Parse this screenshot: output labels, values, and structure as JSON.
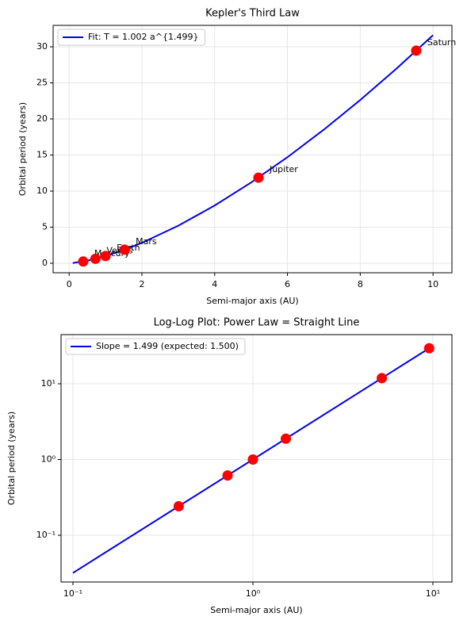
{
  "chart_data": [
    {
      "type": "scatter",
      "title": "Kepler's Third Law",
      "xlabel": "Semi-major axis (AU)",
      "ylabel": "Orbital period (years)",
      "xlim": [
        -0.44,
        10.52
      ],
      "ylim": [
        -1.32,
        32.97
      ],
      "xticks": [
        0,
        2,
        4,
        6,
        8,
        10
      ],
      "yticks": [
        0,
        5,
        10,
        15,
        20,
        25,
        30
      ],
      "grid": true,
      "legend": "upper left",
      "series": [
        {
          "type": "line",
          "name": "Fit: T = 1.002 a^{1.499}",
          "color": "#0000ee",
          "x": [
            0.1,
            0.5,
            1,
            1.5,
            2,
            3,
            4,
            5,
            6,
            7,
            8,
            9,
            10
          ],
          "values": [
            0.03176,
            0.3545,
            1.002,
            1.84,
            2.8321,
            5.2009,
            8.0049,
            11.1846,
            14.6999,
            18.5214,
            22.6256,
            26.9945,
            31.6132
          ]
        },
        {
          "type": "scatter",
          "color": "#ff0000",
          "x": [
            0.387,
            0.723,
            1.0,
            1.524,
            5.203,
            9.537
          ],
          "values": [
            0.241,
            0.615,
            1.0,
            1.881,
            11.86,
            29.46
          ],
          "point_labels": [
            "Mercury",
            "Venus",
            "Earth",
            "Mars",
            "Jupiter",
            "Saturn"
          ]
        }
      ]
    },
    {
      "type": "scatter",
      "title": "Log-Log Plot: Power Law = Straight Line",
      "xlabel": "Semi-major axis (AU)",
      "ylabel": "Orbital period (years)",
      "xscale": "log",
      "yscale": "log",
      "xlim": [
        0.0859,
        12.76
      ],
      "ylim": [
        0.0241,
        44.6
      ],
      "xticks": [
        {
          "value": 0.1,
          "label": "10⁻¹"
        },
        {
          "value": 1,
          "label": "10⁰"
        },
        {
          "value": 10,
          "label": "10¹"
        }
      ],
      "yticks": [
        {
          "value": 0.1,
          "label": "10⁻¹"
        },
        {
          "value": 1,
          "label": "10⁰"
        },
        {
          "value": 10,
          "label": "10¹"
        }
      ],
      "grid": true,
      "legend": "upper left",
      "series": [
        {
          "type": "line",
          "name": "Slope = 1.499 (expected: 1.500)",
          "color": "#0000ee",
          "x": [
            0.1,
            10
          ],
          "values": [
            0.03176,
            31.6132
          ]
        },
        {
          "type": "scatter",
          "color": "#ff0000",
          "x": [
            0.387,
            0.723,
            1.0,
            1.524,
            5.203,
            9.537
          ],
          "values": [
            0.241,
            0.615,
            1.0,
            1.881,
            11.86,
            29.46
          ]
        }
      ]
    }
  ]
}
